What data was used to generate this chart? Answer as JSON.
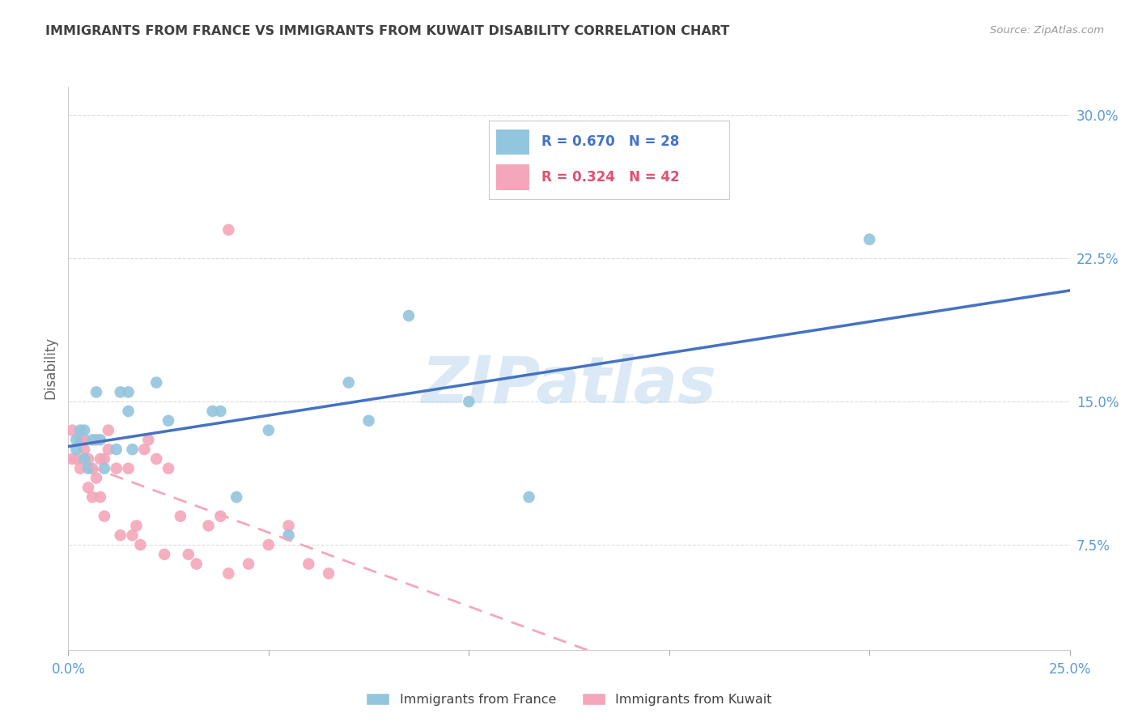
{
  "title": "IMMIGRANTS FROM FRANCE VS IMMIGRANTS FROM KUWAIT DISABILITY CORRELATION CHART",
  "source": "Source: ZipAtlas.com",
  "ylabel": "Disability",
  "ytick_labels": [
    "30.0%",
    "22.5%",
    "15.0%",
    "7.5%"
  ],
  "ytick_values": [
    0.3,
    0.225,
    0.15,
    0.075
  ],
  "xmin": 0.0,
  "xmax": 0.25,
  "ymin": 0.02,
  "ymax": 0.315,
  "legend_france_r": "R = 0.670",
  "legend_france_n": "N = 28",
  "legend_kuwait_r": "R = 0.324",
  "legend_kuwait_n": "N = 42",
  "color_france": "#92C5DE",
  "color_kuwait": "#F4A6BA",
  "color_france_line": "#4472C4",
  "color_kuwait_line": "#F4A6BA",
  "color_axis_labels": "#5B9BD5",
  "color_title": "#404040",
  "color_source": "#999999",
  "color_grid": "#DDDDDD",
  "watermark": "ZIPatlas",
  "france_x": [
    0.002,
    0.002,
    0.003,
    0.004,
    0.004,
    0.005,
    0.006,
    0.007,
    0.008,
    0.009,
    0.012,
    0.013,
    0.015,
    0.015,
    0.016,
    0.022,
    0.025,
    0.036,
    0.038,
    0.042,
    0.05,
    0.055,
    0.07,
    0.075,
    0.085,
    0.1,
    0.115,
    0.2
  ],
  "france_y": [
    0.125,
    0.13,
    0.135,
    0.12,
    0.135,
    0.115,
    0.13,
    0.155,
    0.13,
    0.115,
    0.125,
    0.155,
    0.155,
    0.145,
    0.125,
    0.16,
    0.14,
    0.145,
    0.145,
    0.1,
    0.135,
    0.08,
    0.16,
    0.14,
    0.195,
    0.15,
    0.1,
    0.235
  ],
  "kuwait_x": [
    0.001,
    0.001,
    0.002,
    0.003,
    0.003,
    0.004,
    0.004,
    0.005,
    0.005,
    0.006,
    0.006,
    0.007,
    0.007,
    0.008,
    0.008,
    0.009,
    0.009,
    0.01,
    0.01,
    0.012,
    0.013,
    0.015,
    0.016,
    0.017,
    0.018,
    0.019,
    0.02,
    0.022,
    0.024,
    0.025,
    0.028,
    0.03,
    0.032,
    0.035,
    0.038,
    0.04,
    0.045,
    0.05,
    0.055,
    0.06,
    0.065,
    0.04
  ],
  "kuwait_y": [
    0.12,
    0.135,
    0.12,
    0.13,
    0.115,
    0.125,
    0.13,
    0.12,
    0.105,
    0.115,
    0.1,
    0.13,
    0.11,
    0.12,
    0.1,
    0.09,
    0.12,
    0.135,
    0.125,
    0.115,
    0.08,
    0.115,
    0.08,
    0.085,
    0.075,
    0.125,
    0.13,
    0.12,
    0.07,
    0.115,
    0.09,
    0.07,
    0.065,
    0.085,
    0.09,
    0.06,
    0.065,
    0.075,
    0.085,
    0.065,
    0.06,
    0.24
  ],
  "xticks": [
    0.0,
    0.05,
    0.1,
    0.15,
    0.2,
    0.25
  ],
  "xtick_labels_show": [
    "0.0%",
    "",
    "",
    "",
    "",
    "25.0%"
  ]
}
